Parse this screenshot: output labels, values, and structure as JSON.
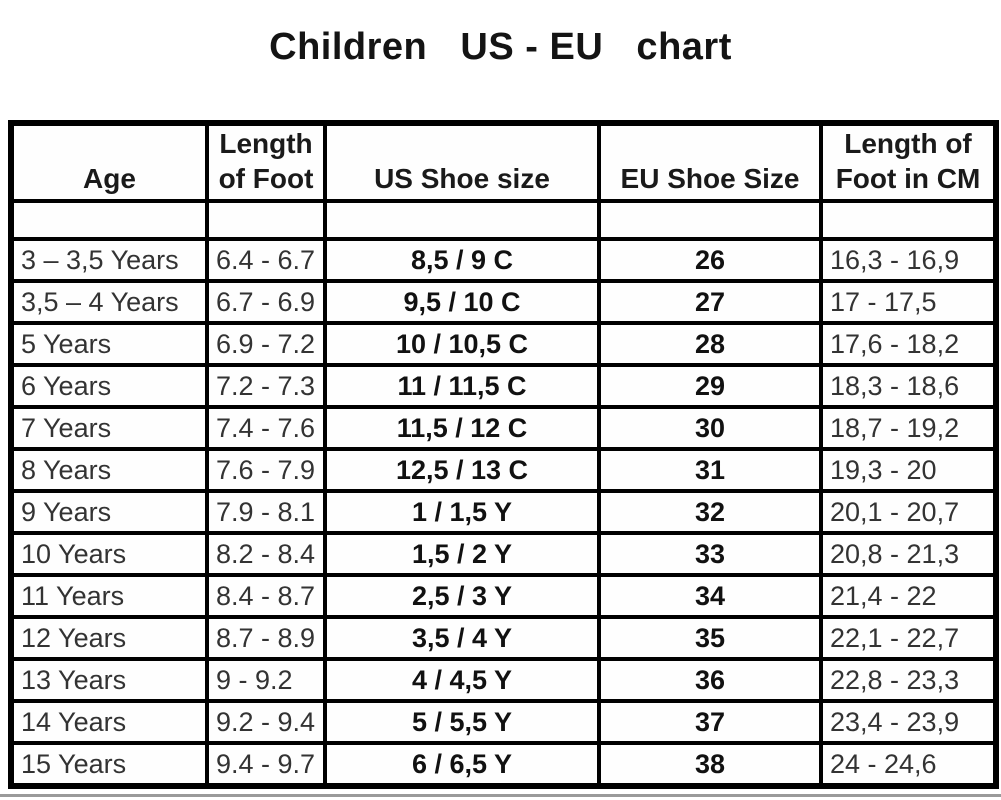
{
  "title": "Children   US - EU   chart",
  "chart_data": {
    "type": "table",
    "title": "Children US - EU chart",
    "columns": [
      "Age",
      "Length\nof Foot",
      "US Shoe size",
      "EU Shoe Size",
      "Length of\nFoot in CM"
    ],
    "rows": [
      [
        "3 – 3,5 Years",
        "6.4 - 6.7",
        "8,5 / 9 C",
        "26",
        "16,3 - 16,9"
      ],
      [
        "3,5 – 4 Years",
        "6.7 - 6.9",
        "9,5 / 10 C",
        "27",
        "17 - 17,5"
      ],
      [
        "5 Years",
        "6.9 - 7.2",
        "10 / 10,5 C",
        "28",
        "17,6 - 18,2"
      ],
      [
        "6 Years",
        "7.2 - 7.3",
        "11 / 11,5 C",
        "29",
        "18,3 - 18,6"
      ],
      [
        "7 Years",
        "7.4 - 7.6",
        "11,5 / 12 C",
        "30",
        "18,7 - 19,2"
      ],
      [
        "8 Years",
        "7.6 - 7.9",
        "12,5 / 13 C",
        "31",
        "19,3 - 20"
      ],
      [
        "9 Years",
        "7.9 - 8.1",
        "1 / 1,5 Y",
        "32",
        "20,1 - 20,7"
      ],
      [
        "10 Years",
        "8.2 - 8.4",
        "1,5 / 2 Y",
        "33",
        "20,8 - 21,3"
      ],
      [
        "11 Years",
        "8.4 - 8.7",
        "2,5 / 3 Y",
        "34",
        "21,4 - 22"
      ],
      [
        "12 Years",
        "8.7 - 8.9",
        "3,5 / 4 Y",
        "35",
        "22,1 - 22,7"
      ],
      [
        "13 Years",
        "9 - 9.2",
        "4 / 4,5 Y",
        "36",
        "22,8 - 23,3"
      ],
      [
        "14 Years",
        "9.2 - 9.4",
        "5 / 5,5 Y",
        "37",
        "23,4 - 23,9"
      ],
      [
        "15 Years",
        "9.4 - 9.7",
        "6 / 6,5 Y",
        "38",
        "24 - 24,6"
      ]
    ],
    "column_styles": [
      "col-age",
      "col-foot",
      "col-us",
      "col-eu",
      "col-cm"
    ],
    "cell_names": [
      "cell-age",
      "cell-foot-length",
      "cell-us-size",
      "cell-eu-size",
      "cell-cm-length"
    ],
    "text_color_regular": "#333333",
    "text_color_bold": "#111111",
    "border_color": "#000000",
    "background_color": "#ffffff"
  }
}
